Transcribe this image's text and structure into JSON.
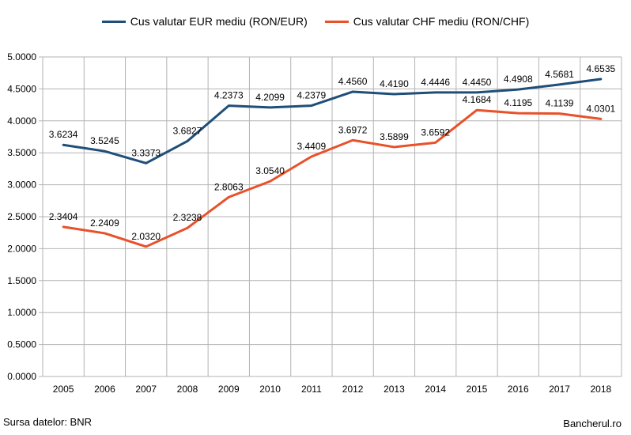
{
  "chart_data": {
    "type": "line",
    "title": "",
    "xlabel": "",
    "ylabel": "",
    "categories": [
      "2005",
      "2006",
      "2007",
      "2008",
      "2009",
      "2010",
      "2011",
      "2012",
      "2013",
      "2014",
      "2015",
      "2016",
      "2017",
      "2018"
    ],
    "series": [
      {
        "name": "Cus valutar EUR mediu (RON/EUR)",
        "color": "#1F4E79",
        "values": [
          3.6234,
          3.5245,
          3.3373,
          3.6827,
          4.2373,
          4.2099,
          4.2379,
          4.456,
          4.419,
          4.4446,
          4.445,
          4.4908,
          4.5681,
          4.6535
        ],
        "labels": [
          "3.6234",
          "3.5245",
          "3.3373",
          "3.6827",
          "4.2373",
          "4.2099",
          "4.2379",
          "4.4560",
          "4.4190",
          "4.4446",
          "4.4450",
          "4.4908",
          "4.5681",
          "4.6535"
        ]
      },
      {
        "name": "Cus valutar CHF mediu (RON/CHF)",
        "color": "#E8512A",
        "values": [
          2.3404,
          2.2409,
          2.032,
          2.3238,
          2.8063,
          3.054,
          3.4409,
          3.6972,
          3.5899,
          3.6592,
          4.1684,
          4.1195,
          4.1139,
          4.0301
        ],
        "labels": [
          "2.3404",
          "2.2409",
          "2.0320",
          "2.3238",
          "2.8063",
          "3.0540",
          "3.4409",
          "3.6972",
          "3.5899",
          "3.6592",
          "4.1684",
          "4.1195",
          "4.1139",
          "4.0301"
        ]
      }
    ],
    "ylim": [
      0,
      5
    ],
    "yticks": [
      "0.0000",
      "0.5000",
      "1.0000",
      "1.5000",
      "2.0000",
      "2.5000",
      "3.0000",
      "3.5000",
      "4.0000",
      "4.5000",
      "5.0000"
    ],
    "grid": true,
    "legend": "top"
  },
  "footer": {
    "source": "Sursa datelor: BNR",
    "brand": "Bancherul.ro"
  }
}
